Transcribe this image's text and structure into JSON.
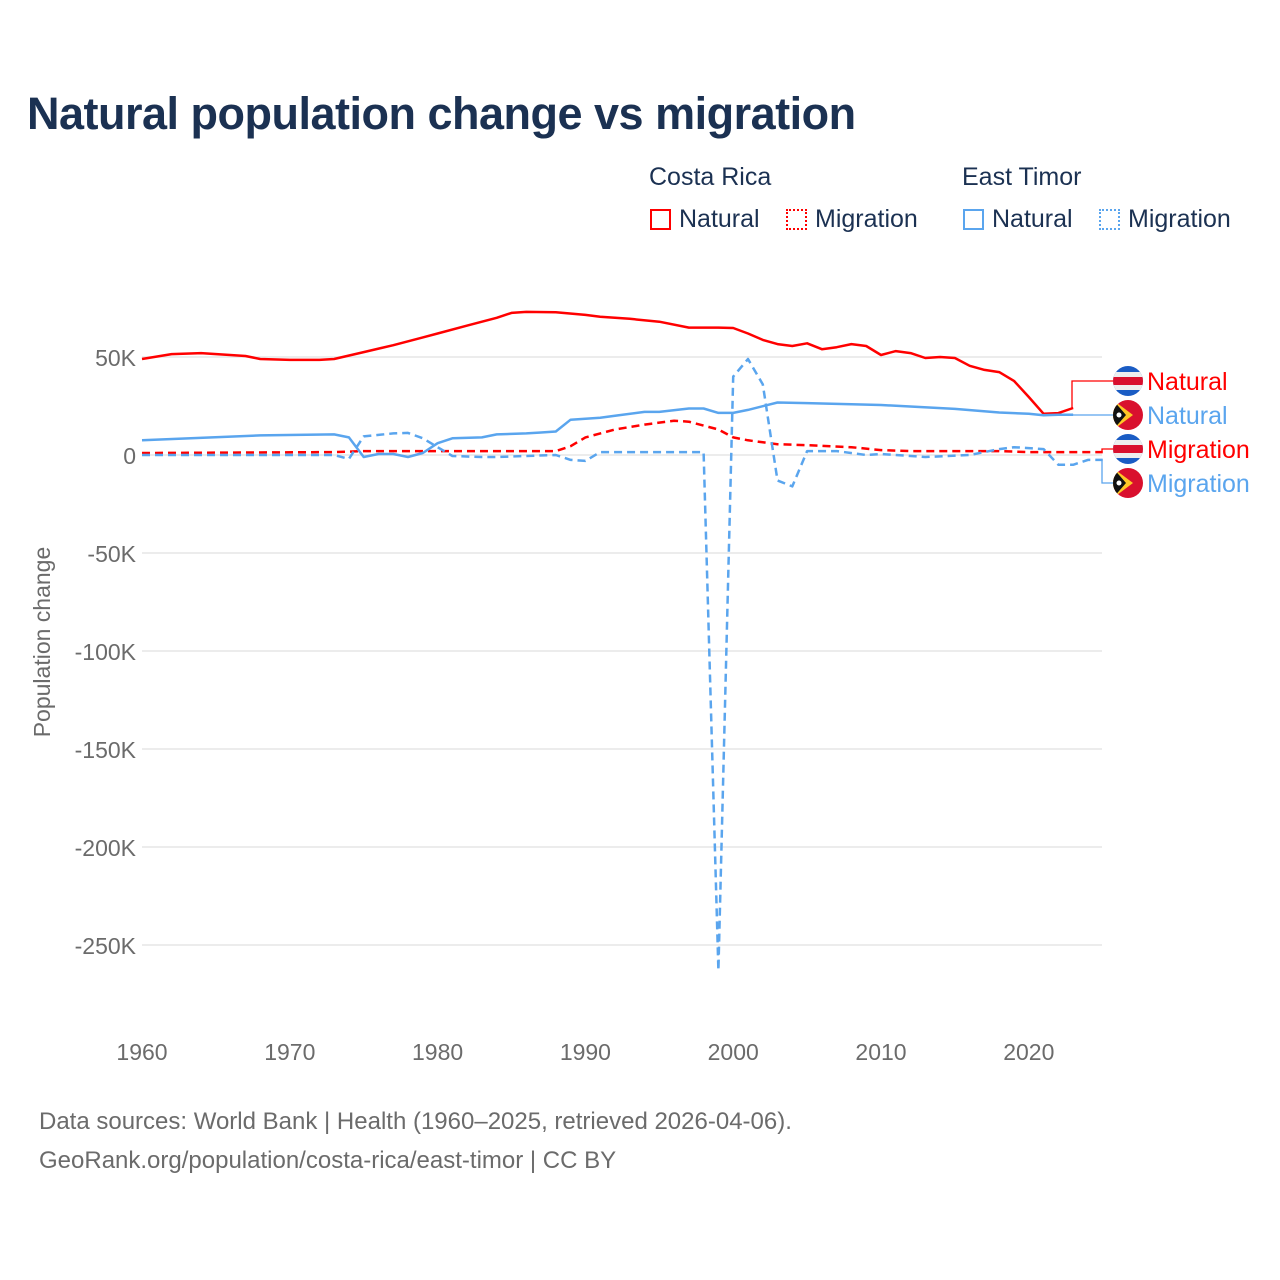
{
  "title": "Natural population change vs migration",
  "legend": {
    "groups": [
      {
        "country": "Costa Rica",
        "items": [
          "Natural",
          "Migration"
        ]
      },
      {
        "country": "East Timor",
        "items": [
          "Natural",
          "Migration"
        ]
      }
    ]
  },
  "colors": {
    "costa_rica": "#ff0000",
    "east_timor": "#5aa5ee",
    "title": "#1b3152",
    "grid": "#e6e6e6",
    "axis_text": "#6b6b6b"
  },
  "footer": {
    "line1": "Data sources: World Bank | Health (1960–2025, retrieved 2026-04-06).",
    "line2": "GeoRank.org/population/costa-rica/east-timor | CC BY"
  },
  "end_labels": [
    {
      "text": "Natural",
      "series": 0,
      "flag": "costa-rica-flag"
    },
    {
      "text": "Natural",
      "series": 2,
      "flag": "east-timor-flag"
    },
    {
      "text": "Migration",
      "series": 1,
      "flag": "costa-rica-flag"
    },
    {
      "text": "Migration",
      "series": 3,
      "flag": "east-timor-flag"
    }
  ],
  "chart_data": {
    "type": "line",
    "title": "Natural population change vs migration",
    "xlabel": "",
    "ylabel": "Population change",
    "xlim": [
      1960,
      2025
    ],
    "ylim": [
      -270000,
      80000
    ],
    "x_ticks": [
      1960,
      1970,
      1980,
      1990,
      2000,
      2010,
      2020
    ],
    "x_tick_labels": [
      "1960",
      "1970",
      "1980",
      "1990",
      "2000",
      "2010",
      "2020"
    ],
    "y_ticks": [
      50000,
      0,
      -50000,
      -100000,
      -150000,
      -200000,
      -250000
    ],
    "y_tick_labels": [
      "50K",
      "0",
      "-50K",
      "-100K",
      "-150K",
      "-200K",
      "-250K"
    ],
    "grid": true,
    "legend_position": "top-right",
    "series": [
      {
        "name": "Costa Rica Natural",
        "style": "solid",
        "color": "#ff0000",
        "points": [
          [
            1960,
            49000
          ],
          [
            1962,
            51500
          ],
          [
            1964,
            52000
          ],
          [
            1967,
            50500
          ],
          [
            1968,
            49000
          ],
          [
            1970,
            48500
          ],
          [
            1972,
            48500
          ],
          [
            1973,
            49000
          ],
          [
            1975,
            52500
          ],
          [
            1977,
            56000
          ],
          [
            1979,
            60000
          ],
          [
            1980,
            62000
          ],
          [
            1982,
            66000
          ],
          [
            1984,
            70000
          ],
          [
            1985,
            72500
          ],
          [
            1986,
            73000
          ],
          [
            1988,
            72800
          ],
          [
            1990,
            71500
          ],
          [
            1991,
            70500
          ],
          [
            1993,
            69500
          ],
          [
            1995,
            68000
          ],
          [
            1997,
            65000
          ],
          [
            1999,
            65000
          ],
          [
            2000,
            64800
          ],
          [
            2001,
            62000
          ],
          [
            2002,
            58700
          ],
          [
            2003,
            56600
          ],
          [
            2004,
            55600
          ],
          [
            2005,
            57000
          ],
          [
            2006,
            54000
          ],
          [
            2007,
            55000
          ],
          [
            2008,
            56600
          ],
          [
            2009,
            55600
          ],
          [
            2010,
            51000
          ],
          [
            2011,
            53000
          ],
          [
            2012,
            52000
          ],
          [
            2013,
            49500
          ],
          [
            2014,
            50000
          ],
          [
            2015,
            49500
          ],
          [
            2016,
            45500
          ],
          [
            2017,
            43400
          ],
          [
            2018,
            42300
          ],
          [
            2019,
            37800
          ],
          [
            2020,
            29600
          ],
          [
            2021,
            21000
          ],
          [
            2022,
            21400
          ],
          [
            2023,
            24000
          ]
        ]
      },
      {
        "name": "Costa Rica Migration",
        "style": "dashed",
        "color": "#ff0000",
        "points": [
          [
            1960,
            1000
          ],
          [
            1973,
            1500
          ],
          [
            1975,
            2000
          ],
          [
            1988,
            2000
          ],
          [
            1989,
            4500
          ],
          [
            1990,
            9000
          ],
          [
            1992,
            13000
          ],
          [
            1994,
            15500
          ],
          [
            1996,
            17500
          ],
          [
            1997,
            17000
          ],
          [
            1998,
            15000
          ],
          [
            1999,
            13000
          ],
          [
            2000,
            9000
          ],
          [
            2001,
            7500
          ],
          [
            2002,
            6500
          ],
          [
            2003,
            5500
          ],
          [
            2005,
            5000
          ],
          [
            2008,
            4000
          ],
          [
            2010,
            2500
          ],
          [
            2012,
            2000
          ],
          [
            2018,
            2000
          ],
          [
            2020,
            1500
          ],
          [
            2025,
            1500
          ]
        ]
      },
      {
        "name": "East Timor Natural",
        "style": "solid",
        "color": "#5aa5ee",
        "points": [
          [
            1960,
            7500
          ],
          [
            1968,
            10000
          ],
          [
            1973,
            10500
          ],
          [
            1974,
            9000
          ],
          [
            1975,
            -1000
          ],
          [
            1976,
            500
          ],
          [
            1977,
            500
          ],
          [
            1978,
            -1000
          ],
          [
            1979,
            1000
          ],
          [
            1980,
            6000
          ],
          [
            1981,
            8500
          ],
          [
            1983,
            9000
          ],
          [
            1984,
            10500
          ],
          [
            1986,
            11000
          ],
          [
            1987,
            11500
          ],
          [
            1988,
            12000
          ],
          [
            1989,
            18000
          ],
          [
            1991,
            19000
          ],
          [
            1992,
            20000
          ],
          [
            1994,
            22000
          ],
          [
            1995,
            22000
          ],
          [
            1997,
            23700
          ],
          [
            1998,
            23700
          ],
          [
            1999,
            21500
          ],
          [
            2000,
            21500
          ],
          [
            2001,
            23000
          ],
          [
            2003,
            26800
          ],
          [
            2005,
            26500
          ],
          [
            2010,
            25500
          ],
          [
            2015,
            23500
          ],
          [
            2018,
            21700
          ],
          [
            2020,
            21000
          ],
          [
            2021,
            20300
          ],
          [
            2022,
            20500
          ],
          [
            2023,
            20500
          ]
        ]
      },
      {
        "name": "East Timor Migration",
        "style": "dashed",
        "color": "#5aa5ee",
        "points": [
          [
            1960,
            0
          ],
          [
            1973,
            0
          ],
          [
            1974,
            -2000
          ],
          [
            1975,
            9500
          ],
          [
            1977,
            11000
          ],
          [
            1978,
            11300
          ],
          [
            1979,
            8500
          ],
          [
            1980,
            4000
          ],
          [
            1981,
            -500
          ],
          [
            1983,
            -1000
          ],
          [
            1984,
            -1000
          ],
          [
            1986,
            -500
          ],
          [
            1988,
            0
          ],
          [
            1989,
            -2500
          ],
          [
            1990,
            -3000
          ],
          [
            1991,
            1500
          ],
          [
            1998,
            1500
          ],
          [
            1999,
            -263000
          ],
          [
            2000,
            40000
          ],
          [
            2001,
            49000
          ],
          [
            2002,
            36000
          ],
          [
            2003,
            -13000
          ],
          [
            2004,
            -16000
          ],
          [
            2005,
            2000
          ],
          [
            2007,
            2000
          ],
          [
            2009,
            0
          ],
          [
            2010,
            500
          ],
          [
            2013,
            -1000
          ],
          [
            2016,
            0
          ],
          [
            2018,
            3000
          ],
          [
            2019,
            4000
          ],
          [
            2020,
            3500
          ],
          [
            2021,
            3000
          ],
          [
            2022,
            -5000
          ],
          [
            2023,
            -5000
          ],
          [
            2024,
            -2500
          ],
          [
            2025,
            -2500
          ]
        ]
      }
    ]
  }
}
